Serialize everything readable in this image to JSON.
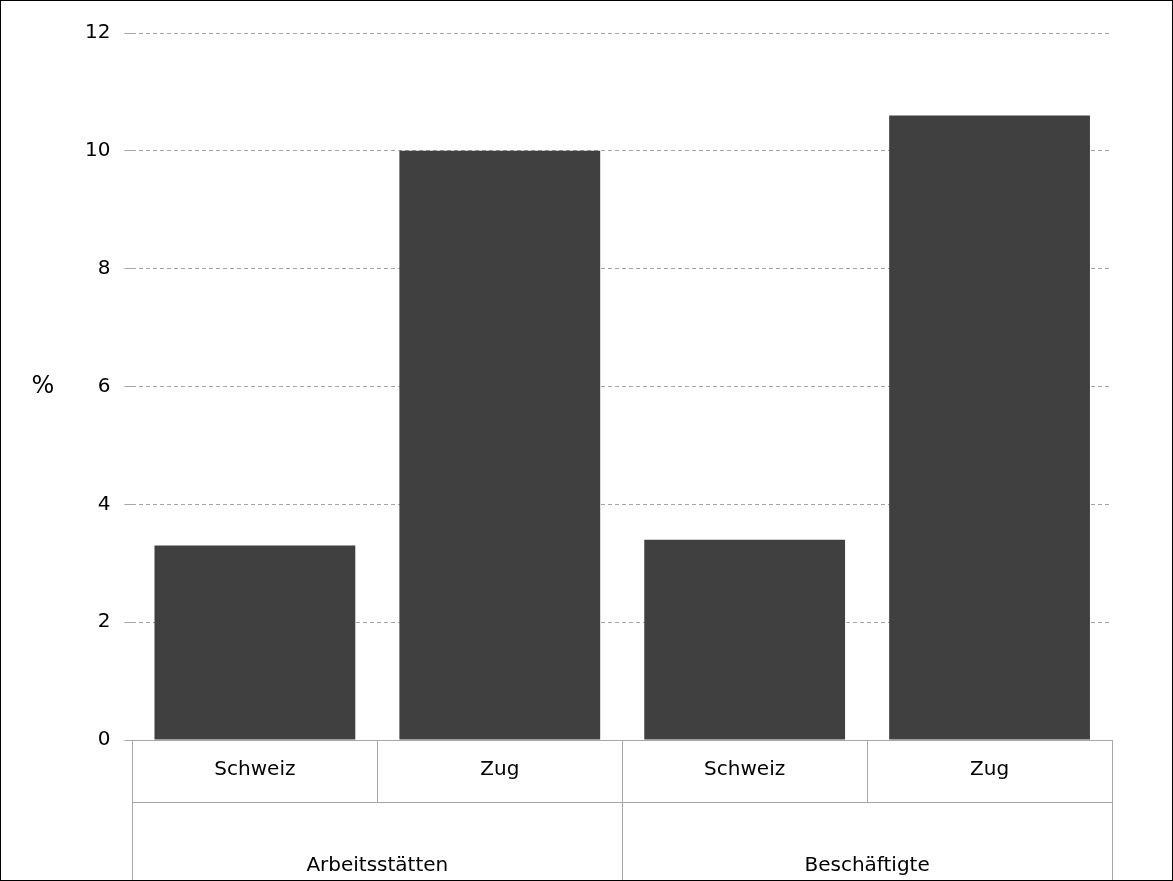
{
  "chart_data": {
    "type": "bar",
    "ylabel": "%",
    "categories": [
      "Schweiz",
      "Zug",
      "Schweiz",
      "Zug"
    ],
    "values": [
      3.3,
      10.0,
      3.4,
      10.6
    ],
    "color": "#404040",
    "ylim": [
      0,
      12
    ],
    "yticks": [
      0,
      2,
      4,
      6,
      8,
      10,
      12
    ],
    "grid": "y",
    "annotations": [
      "Arbeitsstätten",
      "Beschäftigte"
    ]
  }
}
